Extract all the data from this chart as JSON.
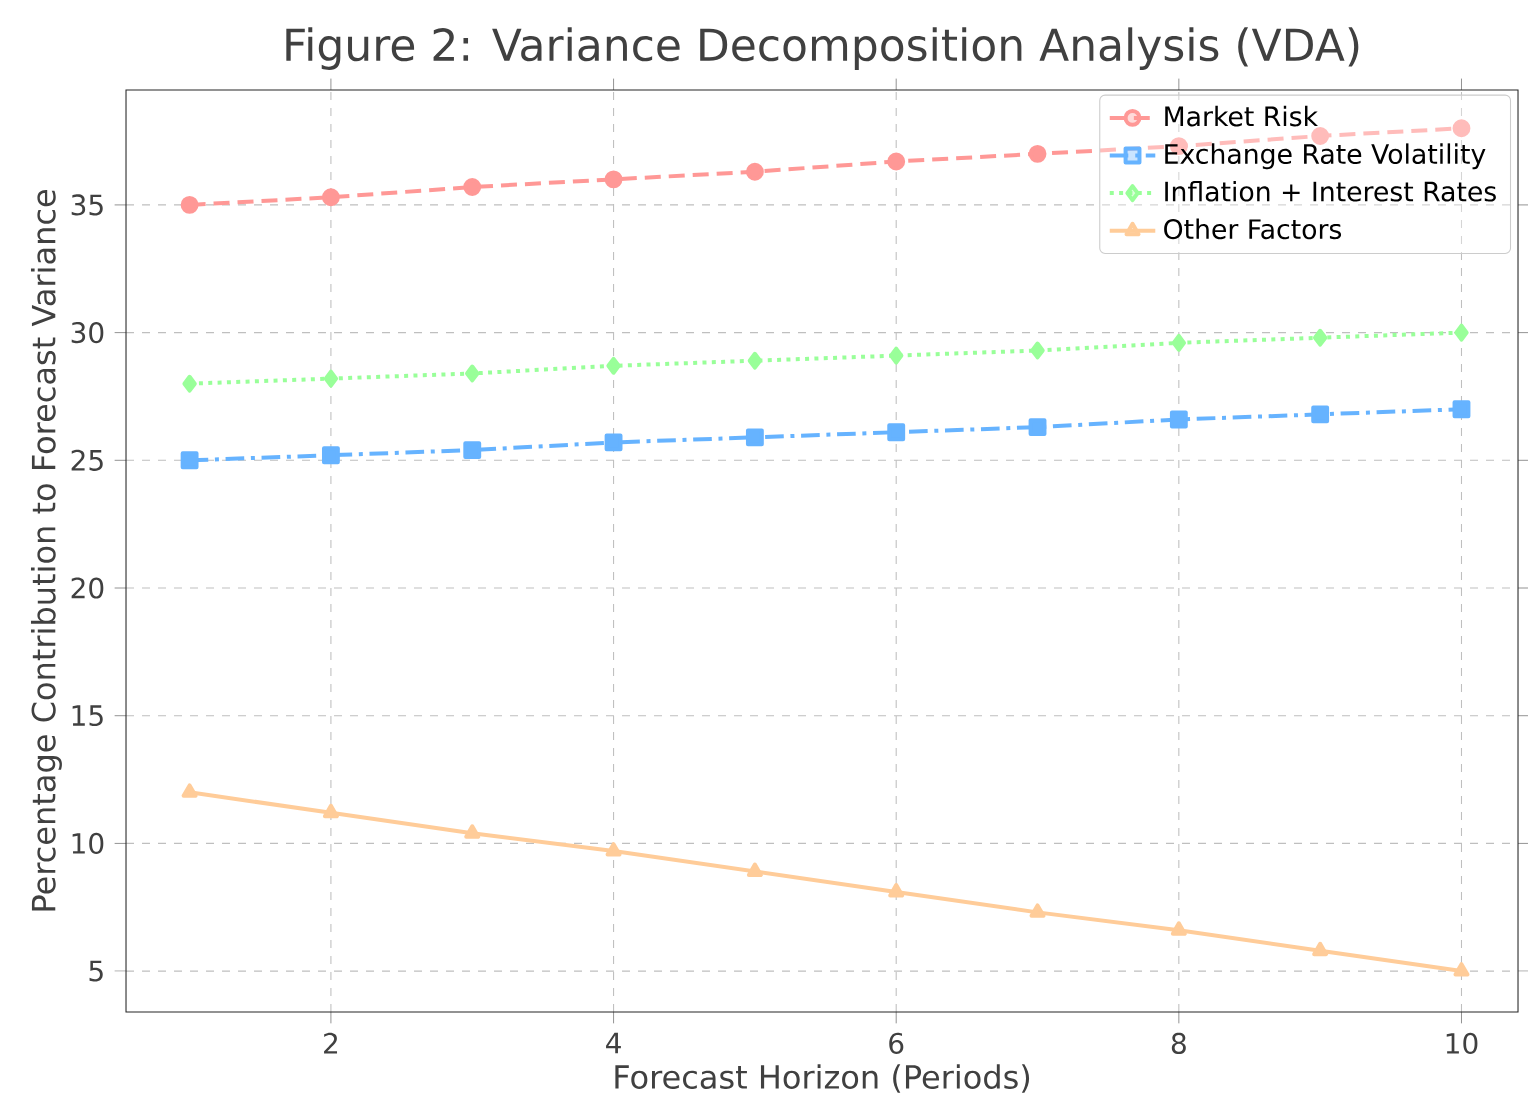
{
  "chart_data": {
    "type": "line",
    "title": "Figure 2: Variance Decomposition Analysis (VDA)",
    "xlabel": "Forecast Horizon (Periods)",
    "ylabel": "Percentage Contribution to Forecast Variance",
    "x": [
      1,
      2,
      3,
      4,
      5,
      6,
      7,
      8,
      9,
      10
    ],
    "series": [
      {
        "name": "Market Risk",
        "color": "#ff9896",
        "marker": "circle",
        "line_style": "dashed",
        "values": [
          35,
          35.3,
          35.7,
          36,
          36.3,
          36.7,
          37,
          37.3,
          37.7,
          38
        ]
      },
      {
        "name": "Exchange Rate Volatility",
        "color": "#66b3ff",
        "marker": "square",
        "line_style": "dashdot",
        "values": [
          25,
          25.2,
          25.4,
          25.7,
          25.9,
          26.1,
          26.3,
          26.6,
          26.8,
          27
        ]
      },
      {
        "name": "Inflation + Interest Rates",
        "color": "#99ff99",
        "marker": "diamond",
        "line_style": "dotted",
        "values": [
          28,
          28.2,
          28.4,
          28.7,
          28.9,
          29.1,
          29.3,
          29.6,
          29.8,
          30
        ]
      },
      {
        "name": "Other Factors",
        "color": "#ffcc99",
        "marker": "triangle",
        "line_style": "solid",
        "values": [
          12,
          11.2,
          10.4,
          9.7,
          8.9,
          8.1,
          7.3,
          6.6,
          5.8,
          5
        ]
      }
    ],
    "xlim": [
      0.55,
      10.4
    ],
    "ylim": [
      3.4,
      39.5
    ],
    "xticks": [
      2,
      4,
      6,
      8,
      10
    ],
    "yticks": [
      5,
      10,
      15,
      20,
      25,
      30,
      35
    ],
    "grid": true,
    "legend": "top right"
  }
}
